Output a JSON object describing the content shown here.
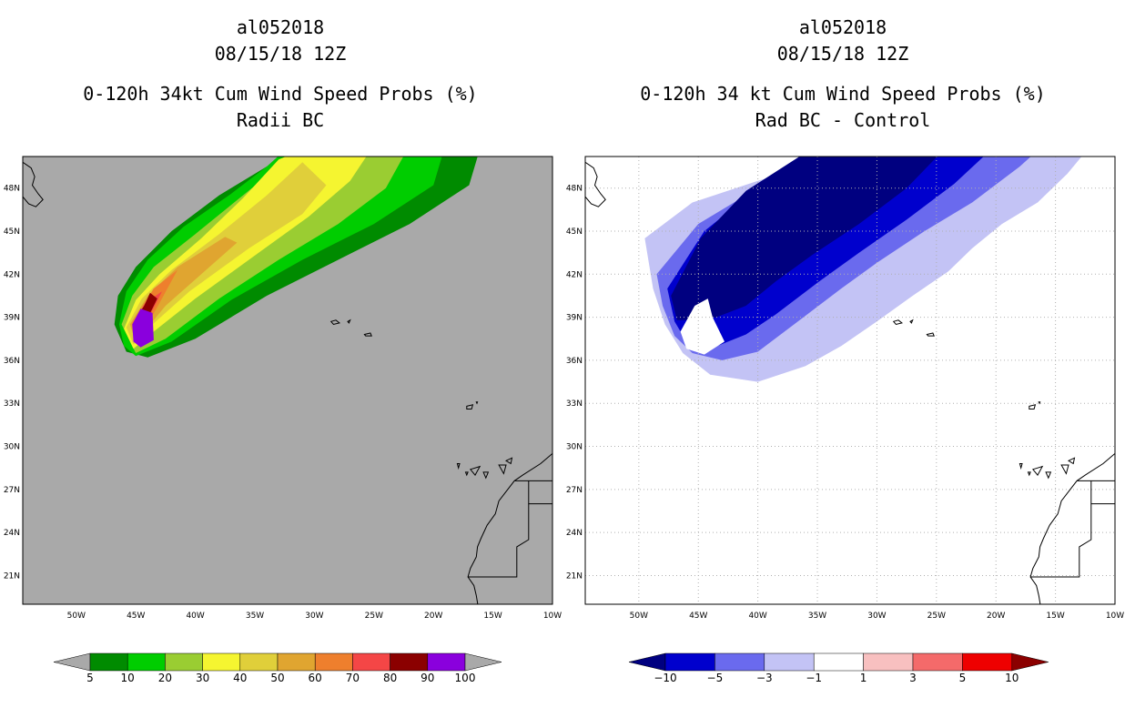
{
  "panels": [
    {
      "storm_id": "al052018",
      "datetime": "08/15/18 12Z",
      "title": "0-120h 34kt Cum Wind Speed Probs (%)",
      "subtitle": "Radii BC",
      "background": "#a9a9a9"
    },
    {
      "storm_id": "al052018",
      "datetime": "08/15/18 12Z",
      "title": "0-120h 34 kt Cum Wind Speed Probs (%)",
      "subtitle": "Rad BC - Control",
      "background": "#ffffff"
    }
  ],
  "chart_data": [
    {
      "type": "heatmap",
      "title": "0-120h 34kt Cum Wind Speed Probs (%)",
      "subtitle": "Radii BC",
      "x_ticks": [
        "50W",
        "45W",
        "40W",
        "35W",
        "30W",
        "25W",
        "20W",
        "15W",
        "10W"
      ],
      "y_ticks": [
        "48N",
        "45N",
        "42N",
        "39N",
        "36N",
        "33N",
        "30N",
        "27N",
        "24N",
        "21N"
      ],
      "xlim": [
        -54.5,
        -10
      ],
      "ylim": [
        19,
        50.2
      ],
      "grid": false,
      "colorbar": {
        "levels": [
          "5",
          "10",
          "20",
          "30",
          "40",
          "50",
          "60",
          "70",
          "80",
          "90",
          "100"
        ],
        "colors": [
          "#008b00",
          "#00cd00",
          "#9acd32",
          "#f5f530",
          "#e0cf3a",
          "#e0a530",
          "#ee7f2d",
          "#f44646",
          "#8b0000",
          "#8a00dd"
        ],
        "extend_color": "#a9a9a9"
      },
      "contour_bands": [
        {
          "min": 5,
          "color": "#008b00"
        },
        {
          "min": 10,
          "color": "#00cd00"
        },
        {
          "min": 20,
          "color": "#9acd32"
        },
        {
          "min": 30,
          "color": "#f5f530"
        },
        {
          "min": 40,
          "color": "#e0cf3a"
        },
        {
          "min": 50,
          "color": "#e0a530"
        },
        {
          "min": 60,
          "color": "#ee7f2d"
        },
        {
          "min": 70,
          "color": "#f44646"
        },
        {
          "min": 80,
          "color": "#8b0000"
        },
        {
          "min": 90,
          "color": "#8a00dd"
        }
      ]
    },
    {
      "type": "heatmap",
      "title": "0-120h 34 kt Cum Wind Speed Probs (%)",
      "subtitle": "Rad BC - Control",
      "x_ticks": [
        "50W",
        "45W",
        "40W",
        "35W",
        "30W",
        "25W",
        "20W",
        "15W",
        "10W"
      ],
      "y_ticks": [
        "48N",
        "45N",
        "42N",
        "39N",
        "36N",
        "33N",
        "30N",
        "27N",
        "24N",
        "21N"
      ],
      "xlim": [
        -54.5,
        -10
      ],
      "ylim": [
        19,
        50.2
      ],
      "grid": true,
      "colorbar": {
        "levels": [
          "-10",
          "-5",
          "-3",
          "-1",
          "1",
          "3",
          "5",
          "10"
        ],
        "colors": [
          "#0000cd",
          "#6a6aee",
          "#c3c3f5",
          "#ffffff",
          "#f8c0c0",
          "#f46a6a",
          "#ee0000"
        ],
        "low_extend_color": "#000080",
        "high_extend_color": "#8b0000"
      },
      "contour_bands": [
        {
          "max": -1,
          "color": "#c3c3f5"
        },
        {
          "max": -3,
          "color": "#6a6aee"
        },
        {
          "max": -5,
          "color": "#0000cd"
        },
        {
          "max": -10,
          "color": "#000080"
        }
      ]
    }
  ]
}
